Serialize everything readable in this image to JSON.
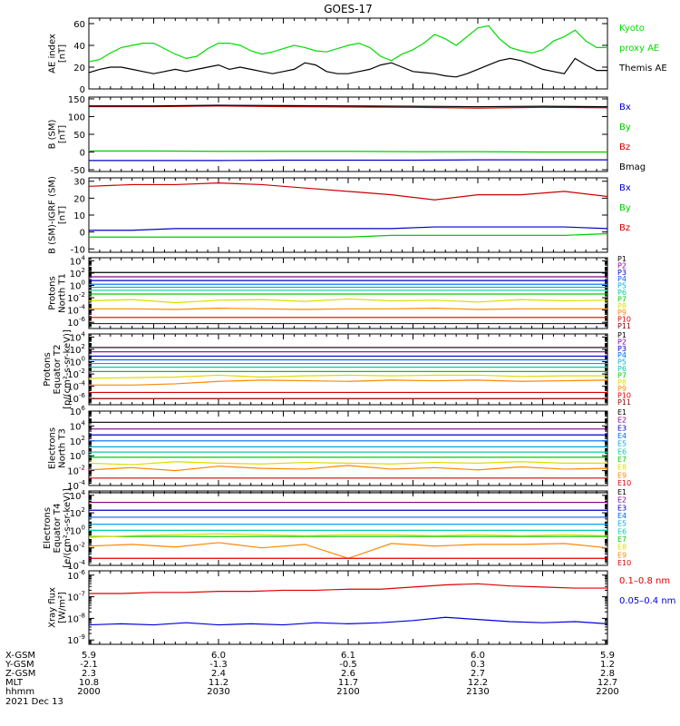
{
  "title": "GOES-17",
  "colors": {
    "frame": "#000000",
    "kyoto": "#00dd00",
    "themis": "#000000",
    "bx": "#0000cc",
    "by": "#00cc00",
    "bz": "#cc0000",
    "bmag": "#000000",
    "xray_long": "#dd0000",
    "xray_short": "#0000dd",
    "channels": [
      "#000000",
      "#880088",
      "#0000cc",
      "#0066ff",
      "#00aadd",
      "#00ccaa",
      "#00cc00",
      "#dddd00",
      "#ff8800",
      "#dd0000",
      "#880000"
    ]
  },
  "chart_data": [
    {
      "id": "ae",
      "type": "line",
      "ylabel": [
        "AE index",
        "[nT]"
      ],
      "yticks": [
        0,
        20,
        40,
        60
      ],
      "ylim": [
        0,
        65
      ],
      "legend": [
        {
          "text": "Kyoto",
          "color_key": "kyoto"
        },
        {
          "text": "proxy AE",
          "color_key": "kyoto"
        },
        {
          "text": "Themis AE",
          "color_key": "themis"
        }
      ],
      "x": [
        0,
        5,
        10,
        15,
        20,
        25,
        30,
        35,
        40,
        45,
        50,
        55,
        60,
        65,
        70,
        75,
        80,
        85,
        90,
        95,
        100,
        105,
        110,
        115,
        120,
        125,
        130,
        135,
        140,
        145,
        150,
        155,
        160,
        165,
        170,
        175,
        180,
        185,
        190,
        195,
        200,
        205,
        210,
        215,
        220,
        225,
        230,
        235,
        240
      ],
      "series": [
        {
          "color_key": "kyoto",
          "values": [
            25,
            27,
            33,
            38,
            40,
            42,
            42,
            37,
            32,
            28,
            30,
            37,
            42,
            42,
            40,
            35,
            32,
            34,
            37,
            40,
            38,
            35,
            34,
            37,
            40,
            42,
            38,
            30,
            26,
            32,
            36,
            42,
            50,
            46,
            40,
            48,
            56,
            58,
            46,
            38,
            35,
            33,
            36,
            44,
            48,
            54,
            44,
            38,
            38
          ]
        },
        {
          "color_key": "themis",
          "values": [
            15,
            18,
            20,
            20,
            18,
            16,
            14,
            16,
            18,
            16,
            18,
            20,
            22,
            18,
            20,
            18,
            16,
            14,
            16,
            18,
            24,
            22,
            16,
            14,
            14,
            16,
            18,
            22,
            24,
            20,
            16,
            15,
            14,
            12,
            11,
            14,
            18,
            22,
            26,
            28,
            26,
            22,
            18,
            16,
            14,
            28,
            22,
            17,
            17
          ]
        }
      ]
    },
    {
      "id": "bsm",
      "type": "line",
      "ylabel": [
        "B (SM)",
        "[nT]"
      ],
      "yticks": [
        -50,
        0,
        50,
        100,
        150
      ],
      "ylim": [
        -55,
        155
      ],
      "legend": [
        {
          "text": "Bx",
          "color_key": "bx"
        },
        {
          "text": "By",
          "color_key": "by"
        },
        {
          "text": "Bz",
          "color_key": "bz"
        },
        {
          "text": "Bmag",
          "color_key": "bmag"
        }
      ],
      "x": [
        0,
        30,
        60,
        90,
        120,
        150,
        180,
        210,
        240
      ],
      "series": [
        {
          "color_key": "bz",
          "values": [
            128,
            128,
            130,
            128,
            127,
            126,
            124,
            126,
            125
          ]
        },
        {
          "color_key": "bmag",
          "values": [
            130,
            130,
            132,
            131,
            130,
            129,
            128,
            129,
            128
          ]
        },
        {
          "color_key": "by",
          "values": [
            3,
            3,
            2,
            2,
            2,
            1,
            1,
            0,
            0
          ]
        },
        {
          "color_key": "bx",
          "values": [
            -24,
            -24,
            -24,
            -23,
            -23,
            -23,
            -22,
            -22,
            -22
          ]
        }
      ]
    },
    {
      "id": "bigrf",
      "type": "line",
      "ylabel": [
        "B (SM)-IGRF (SM)",
        "[nT]"
      ],
      "yticks": [
        -10,
        0,
        10,
        20,
        30
      ],
      "ylim": [
        -12,
        32
      ],
      "legend": [
        {
          "text": "Bx",
          "color_key": "bx"
        },
        {
          "text": "By",
          "color_key": "by"
        },
        {
          "text": "Bz",
          "color_key": "bz"
        }
      ],
      "x": [
        0,
        20,
        40,
        60,
        80,
        100,
        120,
        140,
        160,
        180,
        200,
        220,
        240
      ],
      "series": [
        {
          "color_key": "bz",
          "values": [
            27,
            28,
            28,
            29,
            28,
            26,
            24,
            22,
            19,
            22,
            22,
            24,
            21
          ]
        },
        {
          "color_key": "bx",
          "values": [
            1,
            1,
            2,
            2,
            2,
            2,
            2,
            2,
            3,
            3,
            3,
            3,
            2
          ]
        },
        {
          "color_key": "by",
          "values": [
            -3,
            -3,
            -3,
            -3,
            -3,
            -3,
            -3,
            -2,
            -2,
            -2,
            -2,
            -2,
            -1
          ]
        }
      ]
    },
    {
      "id": "p_north",
      "type": "line",
      "log": true,
      "ylabel": [
        "Protons",
        "North T1"
      ],
      "yticks": [
        -6,
        -4,
        -2,
        0,
        2,
        4
      ],
      "ylim": [
        -7,
        4.5
      ],
      "channel_labels": [
        "P1",
        "P2",
        "P3",
        "P4",
        "P5",
        "P6",
        "P7",
        "P8",
        "P9",
        "P10",
        "P11"
      ],
      "levels": [
        2.1,
        1.4,
        0.8,
        0.2,
        -0.3,
        -0.8,
        -1.4,
        -2.4,
        -3.8,
        -5.2,
        -6.2
      ],
      "x": [
        0,
        20,
        40,
        60,
        80,
        100,
        120,
        140,
        160,
        180,
        200,
        220,
        240
      ],
      "wavy": [
        {
          "channel": 7,
          "values": [
            -2.5,
            -2.3,
            -2.8,
            -2.4,
            -2.3,
            -2.6,
            -2.2,
            -2.5,
            -2.4,
            -2.7,
            -2.3,
            -2.5,
            -2.4
          ]
        },
        {
          "channel": 8,
          "values": [
            -3.8,
            -3.8,
            -3.9,
            -3.7,
            -3.8,
            -3.9,
            -3.8,
            -3.8,
            -3.7,
            -3.9,
            -3.8,
            -3.8,
            -3.8
          ]
        }
      ]
    },
    {
      "id": "p_equator",
      "type": "line",
      "log": true,
      "ylabel": [
        "Protons",
        "Equator T2",
        "[p/(cm²-s-sr-keV)]"
      ],
      "yticks": [
        -6,
        -4,
        -2,
        0,
        2,
        4
      ],
      "ylim": [
        -7,
        4.5
      ],
      "channel_labels": [
        "P1",
        "P2",
        "P3",
        "P4",
        "P5",
        "P6",
        "P7",
        "P8",
        "P9",
        "P10",
        "P11"
      ],
      "levels": [
        2.3,
        1.6,
        0.9,
        0.3,
        -0.3,
        -0.9,
        -1.6,
        -2.6,
        -3.6,
        -5.0,
        -6.0
      ],
      "x": [
        0,
        20,
        40,
        60,
        80,
        100,
        120,
        140,
        160,
        180,
        200,
        220,
        240
      ],
      "wavy": [
        {
          "channel": 7,
          "values": [
            -2.7,
            -2.6,
            -2.5,
            -2.2,
            -2.5,
            -2.3,
            -2.2,
            -2.3,
            -2.2,
            -2.2,
            -2.4,
            -2.3,
            -2.3
          ]
        },
        {
          "channel": 8,
          "values": [
            -3.8,
            -3.8,
            -3.6,
            -3.2,
            -3.0,
            -3.1,
            -3.2,
            -3.0,
            -3.1,
            -3.0,
            -3.2,
            -3.1,
            -3.0
          ]
        }
      ]
    },
    {
      "id": "e_north",
      "type": "line",
      "log": true,
      "ylabel": [
        "Electrons",
        "North T3"
      ],
      "yticks": [
        -4,
        -2,
        0,
        2,
        4,
        6
      ],
      "ylim": [
        -4,
        6
      ],
      "channel_labels": [
        "E1",
        "E2",
        "E3",
        "E4",
        "E5",
        "E6",
        "E7",
        "E8",
        "E9",
        "E10"
      ],
      "levels": [
        4.5,
        3.6,
        2.8,
        2.0,
        1.2,
        0.5,
        -0.2,
        -1.0,
        -2.0,
        -3.0
      ],
      "x": [
        0,
        20,
        40,
        60,
        80,
        100,
        120,
        140,
        160,
        180,
        200,
        220,
        240
      ],
      "wavy": [
        {
          "channel": 7,
          "values": [
            -1.0,
            -1.2,
            -0.8,
            -1.0,
            -1.1,
            -0.9,
            -1.0,
            -1.1,
            -0.9,
            -1.0,
            -0.8,
            -1.0,
            -1.0
          ]
        },
        {
          "channel": 8,
          "values": [
            -1.9,
            -1.6,
            -2.0,
            -1.4,
            -1.7,
            -1.8,
            -1.3,
            -1.8,
            -1.6,
            -1.9,
            -1.5,
            -1.8,
            -1.7
          ]
        }
      ]
    },
    {
      "id": "e_equator",
      "type": "line",
      "log": true,
      "ylabel": [
        "Electrons",
        "Equator T4",
        "[e/(cm²-s-sr-keV)]"
      ],
      "yticks": [
        -4,
        -2,
        0,
        2,
        4
      ],
      "ylim": [
        -4,
        4.5
      ],
      "channel_labels": [
        "E1",
        "E2",
        "E3",
        "E4",
        "E5",
        "E6",
        "E7",
        "E8",
        "E9",
        "E10"
      ],
      "levels": [
        4.3,
        3.2,
        2.3,
        1.5,
        0.7,
        0.0,
        -0.7,
        -1.4,
        -2.2,
        -3.2
      ],
      "x": [
        0,
        20,
        40,
        60,
        80,
        100,
        120,
        140,
        160,
        180,
        200,
        220,
        240
      ],
      "wavy": [
        {
          "channel": 7,
          "values": [
            -0.8,
            -0.6,
            -0.5,
            -0.4,
            -0.5,
            -0.6,
            -0.5,
            -0.5,
            -0.6,
            -0.5,
            -0.6,
            -0.5,
            -0.6
          ]
        },
        {
          "channel": 8,
          "values": [
            -1.8,
            -1.6,
            -1.9,
            -1.4,
            -2.0,
            -1.6,
            -3.2,
            -1.5,
            -1.8,
            -1.6,
            -1.6,
            -1.5,
            -2.0
          ]
        }
      ]
    },
    {
      "id": "xray",
      "type": "line",
      "log": true,
      "ylabel": [
        "Xray flux",
        "[W/m²]"
      ],
      "yticks": [
        -9,
        -8,
        -7,
        -6
      ],
      "ylim": [
        -9.2,
        -5.8
      ],
      "legend": [
        {
          "text": "0.1–0.8 nm",
          "color_key": "xray_long"
        },
        {
          "text": "0.05–0.4 nm",
          "color_key": "xray_short"
        }
      ],
      "x": [
        0,
        15,
        30,
        45,
        60,
        75,
        90,
        105,
        120,
        135,
        150,
        165,
        180,
        195,
        210,
        225,
        240
      ],
      "series": [
        {
          "color_key": "xray_long",
          "values": [
            -6.85,
            -6.85,
            -6.8,
            -6.8,
            -6.75,
            -6.75,
            -6.7,
            -6.7,
            -6.65,
            -6.65,
            -6.55,
            -6.45,
            -6.4,
            -6.5,
            -6.55,
            -6.6,
            -6.6
          ]
        },
        {
          "color_key": "xray_short",
          "values": [
            -8.3,
            -8.25,
            -8.3,
            -8.2,
            -8.3,
            -8.25,
            -8.3,
            -8.2,
            -8.25,
            -8.2,
            -8.1,
            -7.95,
            -8.05,
            -8.15,
            -8.2,
            -8.15,
            -8.25
          ]
        }
      ]
    }
  ],
  "xaxis": {
    "row_labels": [
      "X-GSM",
      "Y-GSM",
      "Z-GSM",
      "MLT",
      "hhmm"
    ],
    "columns": [
      [
        "5.9",
        "-2.1",
        "2.3",
        "10.8",
        "2000"
      ],
      [
        "6.0",
        "-1.3",
        "2.4",
        "11.2",
        "2030"
      ],
      [
        "6.1",
        "-0.5",
        "2.6",
        "11.7",
        "2100"
      ],
      [
        "6.0",
        "0.3",
        "2.7",
        "12.2",
        "2130"
      ],
      [
        "5.9",
        "1.2",
        "2.8",
        "12.7",
        "2200"
      ]
    ],
    "date": "2021 Dec 13"
  }
}
